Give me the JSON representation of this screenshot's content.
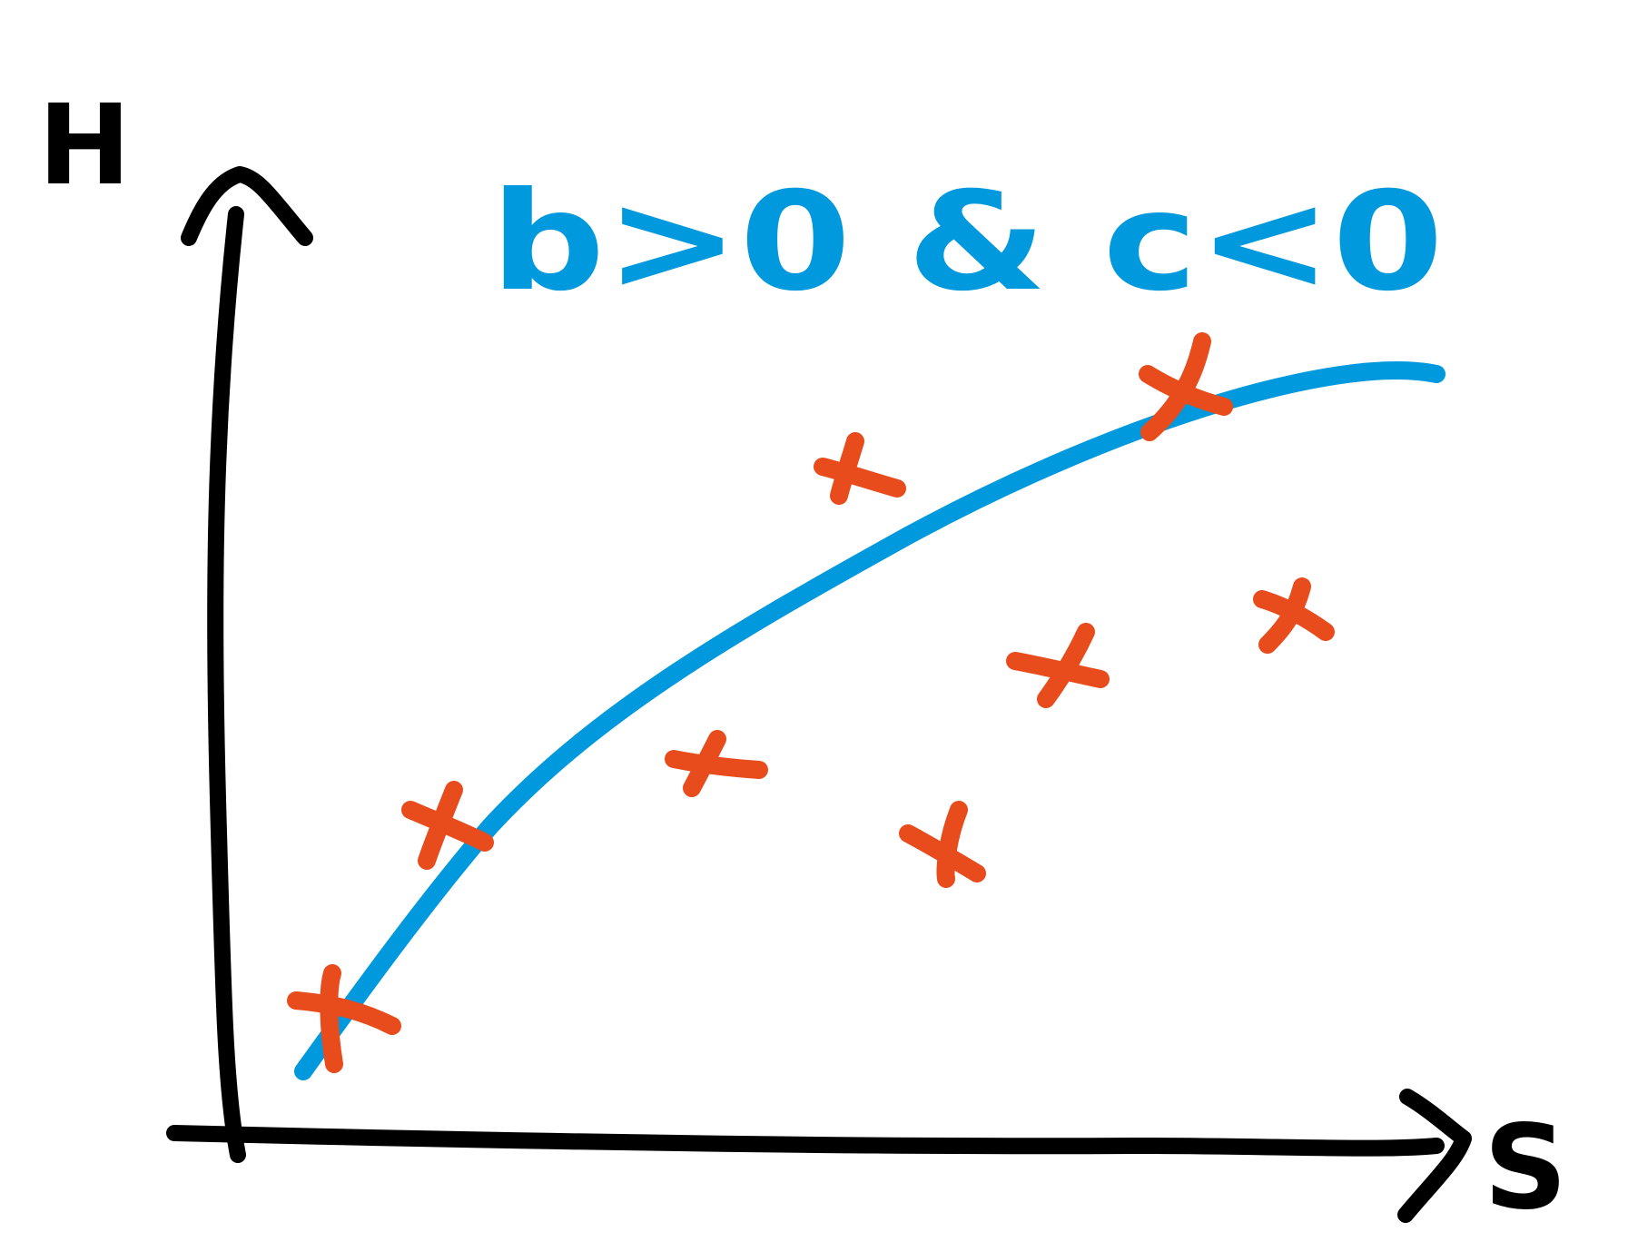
{
  "axes": {
    "y_label": "H",
    "x_label": "S",
    "axis_color": "#000000"
  },
  "annotation": {
    "text": "b>0 & c<0",
    "color": "#0099dd"
  },
  "curve": {
    "color": "#0099dd",
    "shape": "concave increasing"
  },
  "markers": {
    "symbol": "x",
    "color": "#e84c1c",
    "count": 8
  }
}
